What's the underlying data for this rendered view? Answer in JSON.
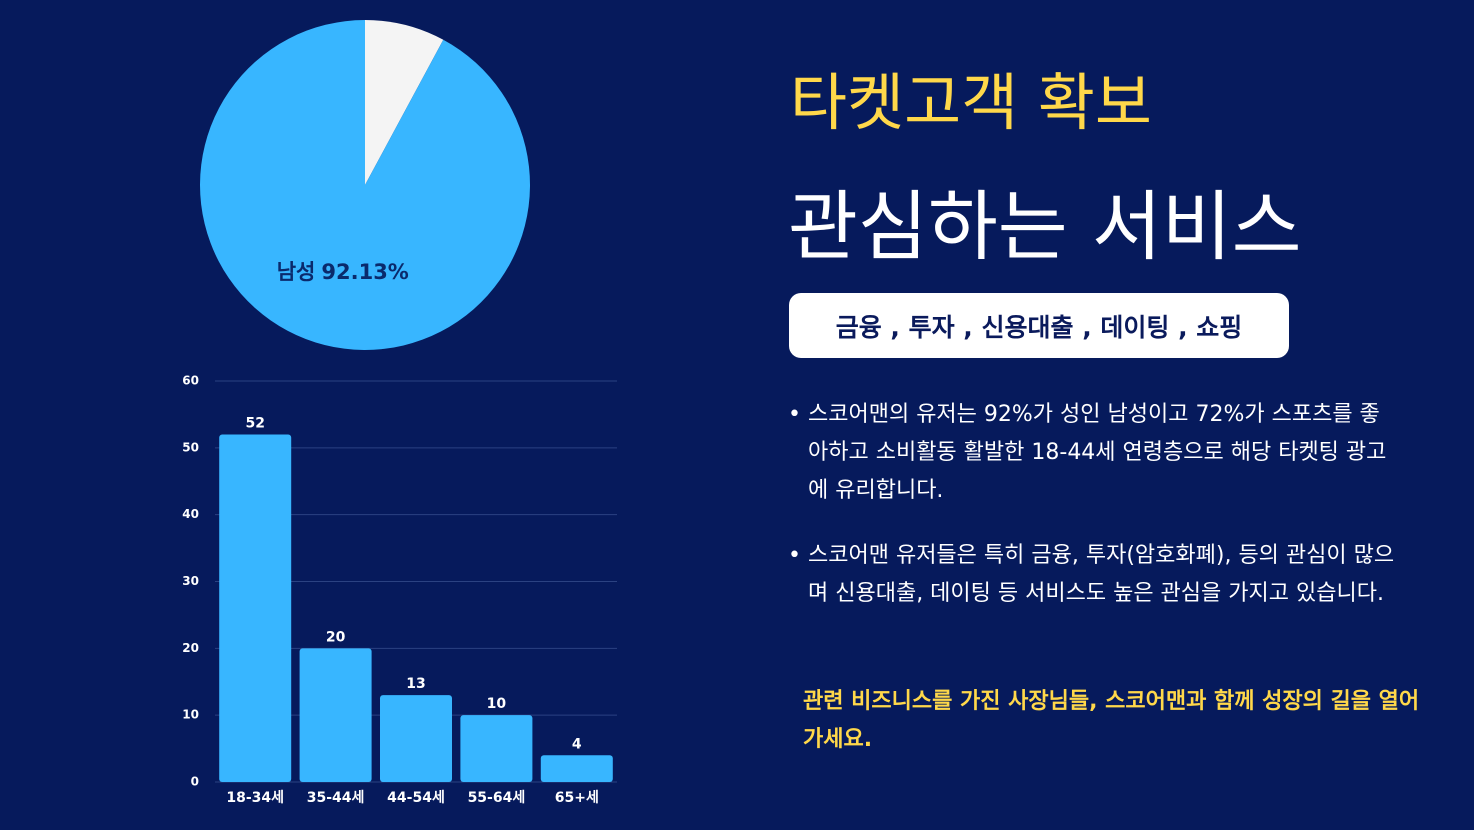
{
  "chart_data": [
    {
      "type": "pie",
      "categories": [
        null,
        "남성"
      ],
      "values": [
        7.87,
        92.13
      ],
      "value_labels": [
        null,
        "92.13%"
      ],
      "colors": [
        "#f4f4f4",
        "#38b6ff"
      ],
      "label_color": "#0a2a6c"
    },
    {
      "type": "bar",
      "categories": [
        "18-34세",
        "35-44세",
        "44-54세",
        "55-64세",
        "65+세"
      ],
      "values": [
        52,
        20,
        13,
        10,
        4
      ],
      "color": "#38b6ff",
      "ylim": [
        0,
        60
      ],
      "yticks": [
        0,
        10,
        20,
        30,
        40,
        50,
        60
      ],
      "grid": true
    }
  ],
  "title": "타켓고객 확보",
  "subtitle": "관심하는 서비스",
  "tag": "금융 , 투자 , 신용대출 , 데이팅 , 쇼핑",
  "bullets": [
    "스코어맨의 유저는 92%가 성인 남성이고 72%가 스포츠를 좋아하고 소비활동 활발한 18-44세 연령층으로 해당 타켓팅 광고에 유리합니다.",
    "스코어맨 유저들은 특히 금융, 투자(암호화폐), 등의 관심이 많으며 신용대출, 데이팅 등 서비스도 높은 관심을 가지고 있습니다."
  ],
  "call_to_action": "관련 비즈니스를 가진 사장님들, 스코어맨과 함께 성장의 길을 열어가세요."
}
